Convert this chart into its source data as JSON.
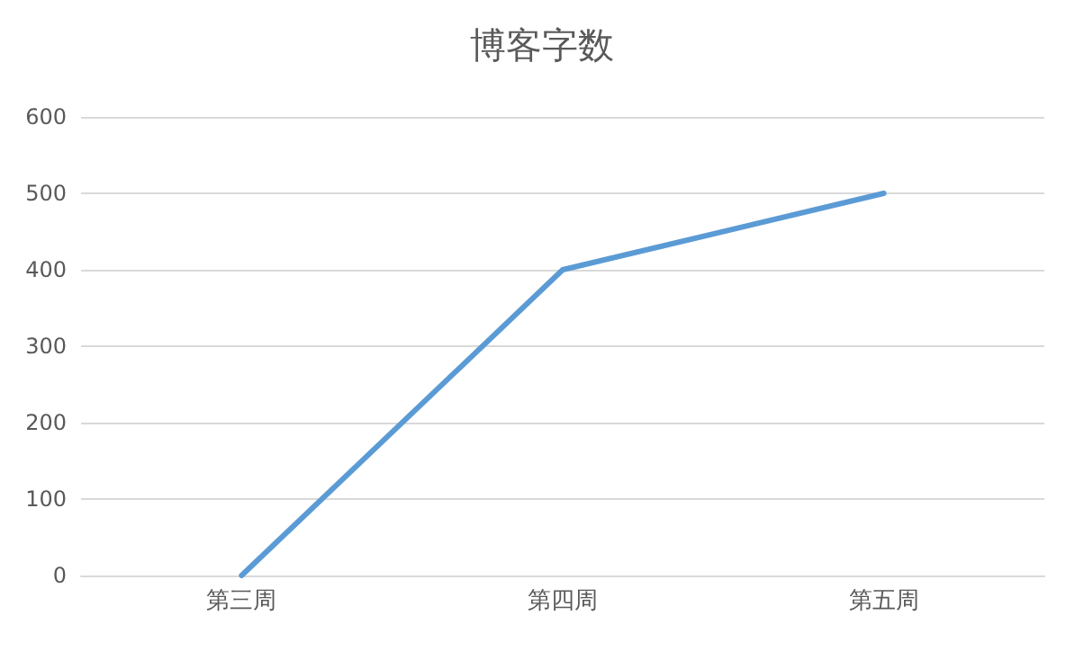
{
  "chart_data": {
    "type": "line",
    "title": "博客字数",
    "categories": [
      "第三周",
      "第四周",
      "第五周"
    ],
    "series": [
      {
        "color": "#5b9bd5",
        "values": [
          0,
          400,
          500
        ]
      }
    ],
    "ylim": [
      0,
      600
    ],
    "yticks": [
      0,
      100,
      200,
      300,
      400,
      500,
      600
    ],
    "grid": "y",
    "marker": "none",
    "line_style": "solid"
  }
}
